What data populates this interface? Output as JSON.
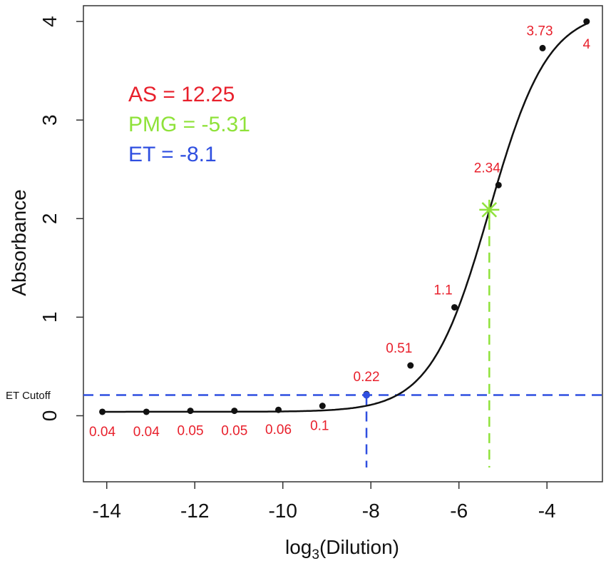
{
  "chart_data": {
    "type": "scatter",
    "title": "",
    "xlabel": "log3(Dilution)",
    "xlabel_base": "log",
    "xlabel_sub": "3",
    "xlabel_rest": "(Dilution)",
    "ylabel": "Absorbance",
    "xlim": [
      -14.53,
      -2.74
    ],
    "ylim": [
      -0.67,
      4.16
    ],
    "xticks": [
      -14,
      -12,
      -10,
      -8,
      -6,
      -4
    ],
    "yticks": [
      0,
      1,
      2,
      3,
      4
    ],
    "grid": false,
    "points": {
      "x": [
        -14.1,
        -13.1,
        -12.1,
        -11.1,
        -10.1,
        -9.1,
        -8.1,
        -7.1,
        -6.1,
        -5.1,
        -4.1,
        -3.1
      ],
      "y": [
        0.04,
        0.04,
        0.05,
        0.05,
        0.06,
        0.1,
        0.22,
        0.51,
        1.1,
        2.34,
        3.73,
        4
      ],
      "labels": [
        "0.04",
        "0.04",
        "0.05",
        "0.05",
        "0.06",
        "0.1",
        "0.22",
        "0.51",
        "1.1",
        "2.34",
        "3.73",
        "4"
      ]
    },
    "fit_curve": {
      "model": "logistic",
      "bottom": 0.04,
      "top": 4.12,
      "midpoint": -5.31,
      "slope": 1.5,
      "x_range": [
        -14.1,
        -3.1
      ]
    },
    "pmg_point": {
      "x": -5.31,
      "y": 2.09
    },
    "et_point": {
      "x": -8.1,
      "y": 0.21
    },
    "et_cutoff": {
      "y": 0.21,
      "label": "ET Cutoff"
    },
    "annotations": [
      {
        "text": "AS = 12.25",
        "color": "#e8202c"
      },
      {
        "text": "PMG = -5.31",
        "color": "#8fe23a"
      },
      {
        "text": "ET = -8.1",
        "color": "#2f4fe0"
      }
    ],
    "colors": {
      "label": "#e8202c",
      "pmg": "#8fe23a",
      "et": "#2f4fe0",
      "points": "#111111"
    }
  }
}
